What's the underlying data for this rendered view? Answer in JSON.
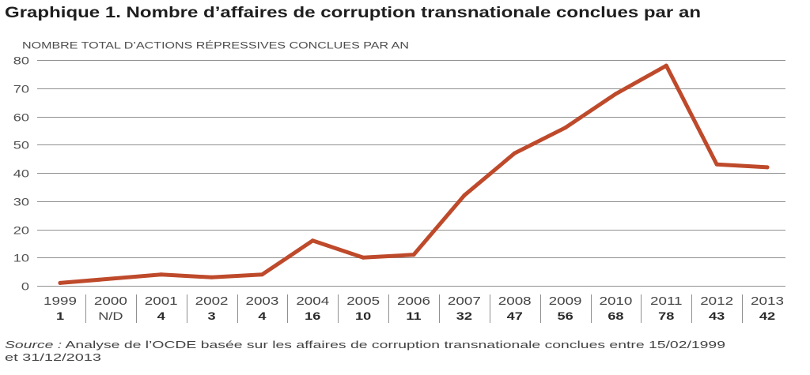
{
  "chart_data": {
    "type": "line",
    "title": "Graphique 1. Nombre d’affaires de corruption transnationale conclues par an",
    "ylabel": "NOMBRE TOTAL D’ACTIONS RÉPRESSIVES CONCLUES PAR AN",
    "categories": [
      "1999",
      "2000",
      "2001",
      "2002",
      "2003",
      "2004",
      "2005",
      "2006",
      "2007",
      "2008",
      "2009",
      "2010",
      "2011",
      "2012",
      "2013"
    ],
    "data_labels": [
      "1",
      "N/D",
      "4",
      "3",
      "4",
      "16",
      "10",
      "11",
      "32",
      "47",
      "56",
      "68",
      "78",
      "43",
      "42"
    ],
    "series": [
      {
        "values": [
          1,
          null,
          4,
          3,
          4,
          16,
          10,
          11,
          32,
          47,
          56,
          68,
          78,
          43,
          42
        ],
        "color": "#be4a2b"
      }
    ],
    "ylim": [
      0,
      80
    ],
    "yticks": [
      0,
      10,
      20,
      30,
      40,
      50,
      60,
      70,
      80
    ],
    "grid": true,
    "legend": "none"
  },
  "source": {
    "label": "Source :",
    "lines": [
      "Analyse de l’OCDE basée sur les affaires de corruption transnationale conclues entre 15/02/1999",
      "et 31/12/2013"
    ]
  }
}
